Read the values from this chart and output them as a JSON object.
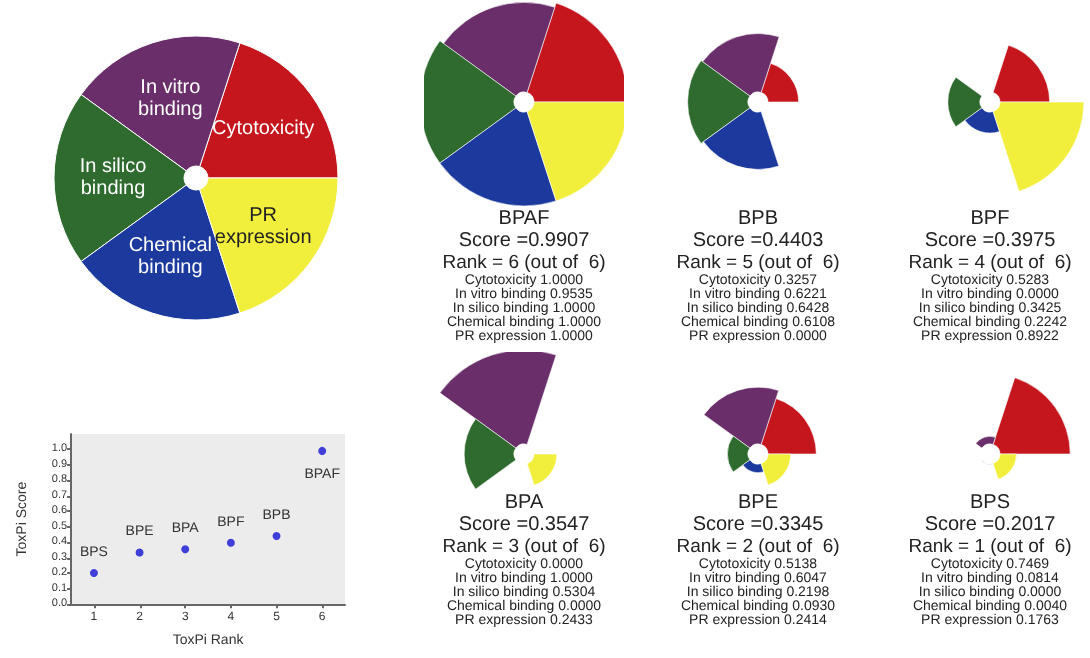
{
  "chart_data": [
    {
      "type": "pie",
      "categories": [
        "Cytotoxicity",
        "In vitro binding",
        "In silico binding",
        "Chemical binding",
        "PR expression"
      ],
      "values": [
        20,
        20,
        20,
        20,
        20
      ],
      "colors": [
        "#c4161c",
        "#6a2e6a",
        "#2f6b2f",
        "#1c3a9e",
        "#f2ee3c"
      ]
    },
    {
      "type": "other",
      "title": "BPAF",
      "subtitle": "Score =0.9907",
      "annotations": [
        "Rank = 6 (out of  6)"
      ],
      "categories": [
        "Cytotoxicity",
        "In vitro binding",
        "In silico binding",
        "Chemical binding",
        "PR expression"
      ],
      "values": [
        1,
        0.9535,
        1,
        1,
        1
      ],
      "value_labels": [
        "1.0000",
        "0.9535",
        "1.0000",
        "1.0000",
        "1.0000"
      ],
      "colors": [
        "#c4161c",
        "#6a2e6a",
        "#2f6b2f",
        "#1c3a9e",
        "#f2ee3c"
      ]
    },
    {
      "type": "other",
      "title": "BPB",
      "subtitle": "Score =0.4403",
      "annotations": [
        "Rank = 5 (out of  6)"
      ],
      "categories": [
        "Cytotoxicity",
        "In vitro binding",
        "In silico binding",
        "Chemical binding",
        "PR expression"
      ],
      "values": [
        0.3257,
        0.6221,
        0.6428,
        0.6108,
        0
      ],
      "value_labels": [
        "0.3257",
        "0.6221",
        "0.6428",
        "0.6108",
        "0.0000"
      ],
      "colors": [
        "#c4161c",
        "#6a2e6a",
        "#2f6b2f",
        "#1c3a9e",
        "#f2ee3c"
      ]
    },
    {
      "type": "other",
      "title": "BPF",
      "subtitle": "Score =0.3975",
      "annotations": [
        "Rank = 4 (out of  6)"
      ],
      "categories": [
        "Cytotoxicity",
        "In vitro binding",
        "In silico binding",
        "Chemical binding",
        "PR expression"
      ],
      "values": [
        0.5283,
        0,
        0.3425,
        0.2242,
        0.8922
      ],
      "value_labels": [
        "0.5283",
        "0.0000",
        "0.3425",
        "0.2242",
        "0.8922"
      ],
      "colors": [
        "#c4161c",
        "#6a2e6a",
        "#2f6b2f",
        "#1c3a9e",
        "#f2ee3c"
      ]
    },
    {
      "type": "other",
      "title": "BPA",
      "subtitle": "Score =0.3547",
      "annotations": [
        "Rank = 3 (out of  6)"
      ],
      "categories": [
        "Cytotoxicity",
        "In vitro binding",
        "In silico binding",
        "Chemical binding",
        "PR expression"
      ],
      "values": [
        0,
        1,
        0.5304,
        0,
        0.2433
      ],
      "value_labels": [
        "0.0000",
        "1.0000",
        "0.5304",
        "0.0000",
        "0.2433"
      ],
      "colors": [
        "#c4161c",
        "#6a2e6a",
        "#2f6b2f",
        "#1c3a9e",
        "#f2ee3c"
      ]
    },
    {
      "type": "other",
      "title": "BPE",
      "subtitle": "Score =0.3345",
      "annotations": [
        "Rank = 2 (out of  6)"
      ],
      "categories": [
        "Cytotoxicity",
        "In vitro binding",
        "In silico binding",
        "Chemical binding",
        "PR expression"
      ],
      "values": [
        0.5138,
        0.6047,
        0.2198,
        0.093,
        0.2414
      ],
      "value_labels": [
        "0.5138",
        "0.6047",
        "0.2198",
        "0.0930",
        "0.2414"
      ],
      "colors": [
        "#c4161c",
        "#6a2e6a",
        "#2f6b2f",
        "#1c3a9e",
        "#f2ee3c"
      ]
    },
    {
      "type": "other",
      "title": "BPS",
      "subtitle": "Score =0.2017",
      "annotations": [
        "Rank = 1 (out of  6)"
      ],
      "categories": [
        "Cytotoxicity",
        "In vitro binding",
        "In silico binding",
        "Chemical binding",
        "PR expression"
      ],
      "values": [
        0.7469,
        0.0814,
        0,
        0.004,
        0.1763
      ],
      "value_labels": [
        "0.7469",
        "0.0814",
        "0.0000",
        "0.0040",
        "0.1763"
      ],
      "colors": [
        "#c4161c",
        "#6a2e6a",
        "#2f6b2f",
        "#1c3a9e",
        "#f2ee3c"
      ]
    },
    {
      "type": "scatter",
      "xlabel": "ToxPi Rank",
      "ylabel": "ToxPi Score",
      "x": [
        1,
        2,
        3,
        4,
        5,
        6
      ],
      "values": [
        0.2017,
        0.3345,
        0.3547,
        0.3975,
        0.4403,
        0.9907
      ],
      "color": "#1414d2",
      "marker": "circle",
      "grid": false,
      "xlim": [
        0.5,
        6.5
      ],
      "xticks": [
        1,
        2,
        3,
        4,
        5,
        6
      ],
      "ylim": [
        0,
        1.1
      ],
      "yticks": [
        {
          "value": 0,
          "label": "0.0"
        },
        {
          "value": 0.1,
          "label": "0.1"
        },
        {
          "value": 0.2,
          "label": "0.2"
        },
        {
          "value": 0.3,
          "label": "0.3"
        },
        {
          "value": 0.4,
          "label": "0.4"
        },
        {
          "value": 0.5,
          "label": "0.5"
        },
        {
          "value": 0.6,
          "label": "0.6"
        },
        {
          "value": 0.7,
          "label": "0.7"
        },
        {
          "value": 0.8,
          "label": "0.8"
        },
        {
          "value": 0.9,
          "label": "0.9"
        },
        {
          "value": 1,
          "label": "1.0"
        }
      ],
      "annotations": [
        {
          "text": "BPS",
          "x": 1,
          "y": 0.2017
        },
        {
          "text": "BPE",
          "x": 2,
          "y": 0.3345
        },
        {
          "text": "BPA",
          "x": 3,
          "y": 0.3547
        },
        {
          "text": "BPF",
          "x": 4,
          "y": 0.3975
        },
        {
          "text": "BPB",
          "x": 5,
          "y": 0.4403
        },
        {
          "text": "BPAF",
          "x": 6,
          "y": 0.9907
        }
      ]
    }
  ]
}
